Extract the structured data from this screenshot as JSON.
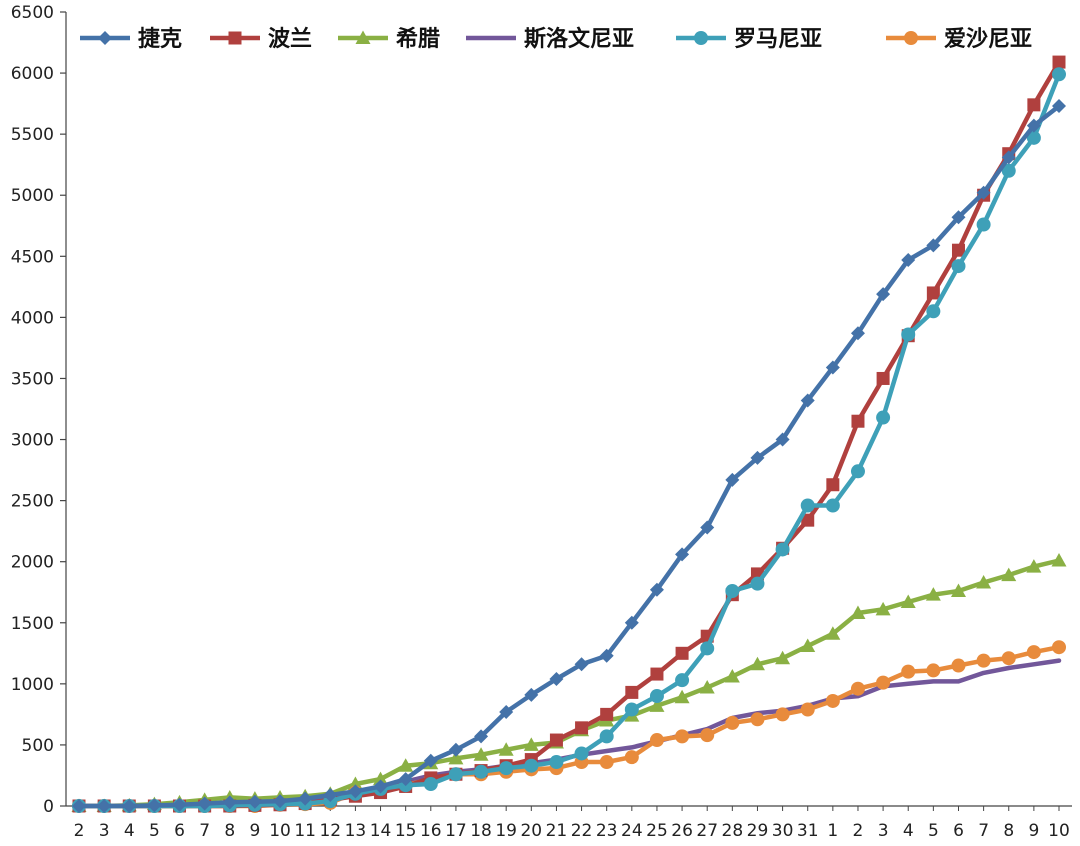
{
  "chart_data": {
    "type": "line",
    "categories": [
      "2",
      "3",
      "4",
      "5",
      "6",
      "7",
      "8",
      "9",
      "10",
      "11",
      "12",
      "13",
      "14",
      "15",
      "16",
      "17",
      "18",
      "19",
      "20",
      "21",
      "22",
      "23",
      "24",
      "25",
      "26",
      "27",
      "28",
      "29",
      "30",
      "31",
      "1",
      "2",
      "3",
      "4",
      "5",
      "6",
      "7",
      "8",
      "9",
      "10"
    ],
    "ylim": [
      0,
      6500
    ],
    "yticks": [
      0,
      500,
      1000,
      1500,
      2000,
      2500,
      3000,
      3500,
      4000,
      4500,
      5000,
      5500,
      6000,
      6500
    ],
    "grid": false,
    "legend": "top",
    "series": [
      {
        "name": "捷克",
        "color": "#4472a8",
        "marker": "diamond",
        "values": [
          0,
          0,
          0,
          5,
          10,
          20,
          30,
          35,
          40,
          60,
          90,
          120,
          160,
          220,
          370,
          460,
          570,
          770,
          910,
          1040,
          1160,
          1230,
          1500,
          1770,
          2060,
          2280,
          2670,
          2850,
          3000,
          3320,
          3590,
          3870,
          4190,
          4470,
          4590,
          4820,
          5020,
          5310,
          5570,
          5730
        ]
      },
      {
        "name": "波兰",
        "color": "#b0403e",
        "marker": "square",
        "values": [
          0,
          0,
          0,
          0,
          0,
          0,
          0,
          5,
          10,
          20,
          50,
          80,
          110,
          160,
          230,
          260,
          290,
          330,
          380,
          540,
          640,
          750,
          930,
          1080,
          1250,
          1390,
          1730,
          1900,
          2110,
          2340,
          2630,
          3150,
          3500,
          3850,
          4200,
          4550,
          5000,
          5340,
          5740,
          6090
        ]
      },
      {
        "name": "希腊",
        "color": "#8ab044",
        "marker": "triangle",
        "values": [
          0,
          0,
          5,
          15,
          30,
          50,
          70,
          60,
          70,
          80,
          100,
          180,
          220,
          330,
          350,
          390,
          420,
          460,
          500,
          520,
          620,
          700,
          740,
          820,
          890,
          970,
          1060,
          1160,
          1210,
          1310,
          1410,
          1580,
          1610,
          1670,
          1730,
          1760,
          1830,
          1890,
          1960,
          2010
        ]
      },
      {
        "name": "斯洛文尼亚",
        "color": "#72579a",
        "marker": "none",
        "values": [
          0,
          0,
          0,
          0,
          5,
          10,
          15,
          25,
          30,
          40,
          60,
          100,
          140,
          200,
          250,
          280,
          300,
          330,
          350,
          380,
          420,
          450,
          480,
          530,
          580,
          630,
          720,
          760,
          780,
          820,
          880,
          900,
          980,
          1000,
          1020,
          1020,
          1090,
          1130,
          1160,
          1190
        ]
      },
      {
        "name": "罗马尼亚",
        "color": "#3ea0b8",
        "marker": "circle",
        "values": [
          0,
          0,
          0,
          0,
          0,
          0,
          5,
          10,
          15,
          20,
          40,
          100,
          140,
          170,
          180,
          260,
          280,
          310,
          330,
          360,
          430,
          570,
          790,
          900,
          1030,
          1290,
          1760,
          1820,
          2100,
          2460,
          2460,
          2740,
          3180,
          3860,
          4050,
          4420,
          4760,
          5200,
          5470,
          5990
        ]
      },
      {
        "name": "爱沙尼亚",
        "color": "#e88b3c",
        "marker": "circle",
        "values": [
          0,
          0,
          0,
          0,
          0,
          0,
          0,
          0,
          10,
          15,
          25,
          110,
          140,
          170,
          220,
          260,
          260,
          280,
          300,
          310,
          360,
          360,
          400,
          540,
          570,
          580,
          680,
          710,
          750,
          790,
          860,
          960,
          1010,
          1100,
          1110,
          1150,
          1190,
          1210,
          1260,
          1300
        ]
      }
    ]
  }
}
